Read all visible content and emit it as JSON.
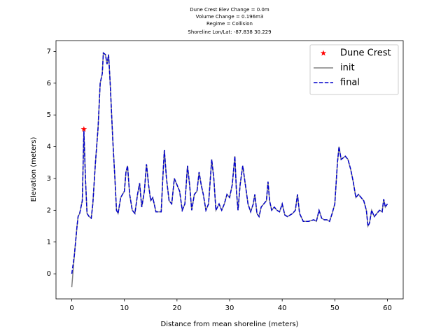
{
  "chart_data": {
    "type": "line",
    "title": [
      "Dune Crest Elev Change = 0.0m",
      "Volume Change = 0.196m3",
      "Regime = Collision",
      "Shoreline Lon/Lat: -87.838 30.229"
    ],
    "x_label": "Distance from mean shoreline (meters)",
    "y_label": "Elevation (meters)",
    "xlim": [
      -3,
      63
    ],
    "ylim": [
      -0.79,
      7.34
    ],
    "xticks": [
      0,
      10,
      20,
      30,
      40,
      50,
      60
    ],
    "yticks": [
      0,
      1,
      2,
      3,
      4,
      5,
      6,
      7
    ],
    "grid": false,
    "legend": "upper right",
    "x": [
      0,
      0.5,
      1.0,
      1.2,
      1.5,
      2.0,
      2.3,
      2.6,
      2.9,
      3.3,
      3.7,
      4.0,
      4.5,
      5.0,
      5.4,
      5.8,
      6.0,
      6.4,
      6.7,
      7.0,
      7.3,
      7.8,
      8.2,
      8.5,
      8.8,
      9.3,
      10.0,
      10.3,
      10.6,
      11.0,
      11.5,
      12.0,
      12.5,
      12.9,
      13.3,
      13.8,
      14.2,
      14.6,
      15.0,
      15.4,
      16.0,
      17.0,
      17.3,
      17.6,
      18.0,
      18.5,
      19.0,
      19.5,
      20.0,
      20.5,
      21.0,
      21.5,
      22.0,
      22.4,
      22.8,
      23.3,
      23.8,
      24.2,
      24.6,
      25.0,
      25.5,
      26.0,
      26.6,
      27.0,
      27.4,
      28.0,
      28.5,
      29.0,
      29.5,
      30.0,
      30.5,
      31.0,
      31.3,
      31.6,
      32.0,
      32.5,
      33.0,
      33.5,
      34.0,
      34.5,
      34.8,
      35.2,
      35.6,
      36.0,
      36.5,
      37.0,
      37.3,
      37.6,
      38.0,
      38.5,
      39.0,
      39.5,
      40.0,
      40.5,
      41.0,
      41.5,
      42.0,
      42.5,
      42.9,
      43.3,
      44.0,
      45.0,
      46.0,
      46.5,
      47.0,
      47.5,
      48.0,
      48.5,
      49.0,
      49.5,
      50.0,
      50.5,
      50.8,
      51.2,
      52.0,
      52.5,
      53.0,
      53.5,
      54.0,
      54.5,
      55.0,
      55.5,
      56.0,
      56.3,
      56.6,
      57.0,
      57.5,
      58.0,
      58.5,
      59.0,
      59.3,
      59.6,
      60.0
    ],
    "series": [
      {
        "name": "Dune Crest",
        "color": "#ff0000",
        "marker": "star",
        "x": [
          2.3
        ],
        "values": [
          4.55
        ]
      },
      {
        "name": "init",
        "color": "#808080",
        "linestyle": "solid",
        "values": [
          -0.42,
          0.6,
          1.5,
          1.8,
          1.9,
          2.3,
          4.5,
          3.0,
          1.9,
          1.8,
          1.75,
          2.2,
          3.5,
          4.6,
          6.0,
          6.3,
          6.95,
          6.9,
          6.6,
          6.9,
          6.0,
          4.2,
          3.0,
          2.0,
          1.9,
          2.4,
          2.6,
          3.2,
          3.4,
          2.5,
          2.0,
          1.9,
          2.5,
          2.85,
          2.1,
          2.6,
          3.45,
          2.8,
          2.3,
          2.4,
          1.95,
          1.95,
          3.0,
          3.9,
          3.0,
          2.3,
          2.2,
          3.0,
          2.8,
          2.6,
          2.0,
          2.2,
          3.4,
          2.8,
          2.0,
          2.5,
          2.6,
          3.2,
          2.8,
          2.5,
          2.0,
          2.2,
          3.6,
          3.0,
          2.0,
          2.2,
          2.0,
          2.2,
          2.5,
          2.4,
          2.8,
          3.7,
          2.6,
          2.0,
          2.8,
          3.4,
          2.8,
          2.2,
          1.95,
          2.2,
          2.5,
          1.9,
          1.8,
          2.1,
          2.2,
          2.3,
          2.9,
          2.3,
          2.0,
          2.1,
          2.0,
          1.95,
          2.2,
          1.85,
          1.8,
          1.85,
          1.9,
          2.0,
          2.5,
          1.9,
          1.65,
          1.65,
          1.7,
          1.65,
          2.0,
          1.75,
          1.7,
          1.7,
          1.65,
          1.9,
          2.2,
          3.5,
          4.0,
          3.6,
          3.7,
          3.6,
          3.3,
          2.9,
          2.4,
          2.5,
          2.4,
          2.3,
          2.0,
          1.5,
          1.6,
          2.0,
          1.8,
          1.9,
          2.0,
          1.95,
          2.35,
          2.1,
          2.2
        ]
      },
      {
        "name": "final",
        "color": "#0000cc",
        "linestyle": "dashed",
        "values": [
          0.0,
          0.6,
          1.5,
          1.8,
          1.9,
          2.3,
          4.5,
          3.0,
          1.9,
          1.8,
          1.75,
          2.2,
          3.5,
          4.6,
          6.0,
          6.3,
          6.95,
          6.9,
          6.6,
          6.9,
          6.0,
          4.2,
          3.0,
          2.0,
          1.9,
          2.4,
          2.6,
          3.2,
          3.4,
          2.5,
          2.0,
          1.9,
          2.5,
          2.85,
          2.1,
          2.6,
          3.45,
          2.8,
          2.3,
          2.4,
          1.95,
          1.95,
          3.0,
          3.9,
          3.0,
          2.3,
          2.2,
          3.0,
          2.8,
          2.6,
          2.0,
          2.2,
          3.4,
          2.8,
          2.0,
          2.5,
          2.6,
          3.2,
          2.8,
          2.5,
          2.0,
          2.2,
          3.6,
          3.0,
          2.0,
          2.2,
          2.0,
          2.2,
          2.5,
          2.4,
          2.8,
          3.7,
          2.6,
          2.0,
          2.8,
          3.4,
          2.8,
          2.2,
          1.95,
          2.2,
          2.5,
          1.9,
          1.8,
          2.1,
          2.2,
          2.3,
          2.9,
          2.3,
          2.0,
          2.1,
          2.0,
          1.95,
          2.2,
          1.85,
          1.8,
          1.85,
          1.9,
          2.0,
          2.5,
          1.9,
          1.65,
          1.65,
          1.7,
          1.65,
          2.0,
          1.75,
          1.7,
          1.7,
          1.65,
          1.9,
          2.2,
          3.5,
          4.0,
          3.6,
          3.7,
          3.6,
          3.3,
          2.9,
          2.4,
          2.5,
          2.4,
          2.3,
          2.0,
          1.5,
          1.6,
          2.0,
          1.8,
          1.9,
          2.0,
          1.95,
          2.35,
          2.1,
          2.2
        ]
      }
    ]
  }
}
